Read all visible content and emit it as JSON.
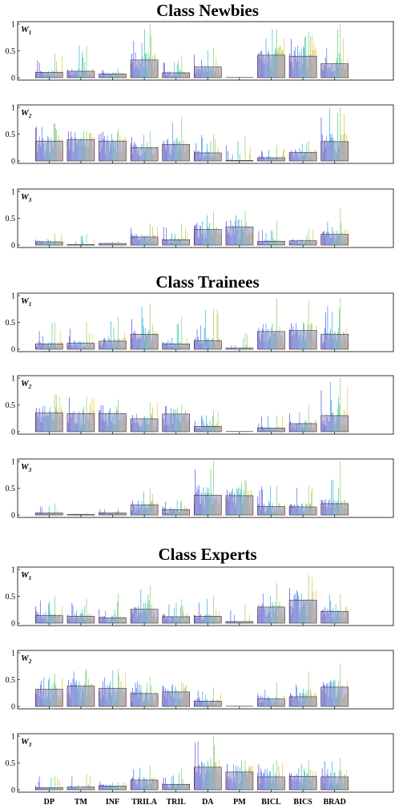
{
  "figure": {
    "groups": [
      "Class Newbies",
      "Class Trainees",
      "Class Experts"
    ],
    "panel_labels": [
      "W1",
      "W2",
      "W3"
    ],
    "categories": [
      "DP",
      "TM",
      "INF",
      "TRILA",
      "TRIL",
      "DA",
      "PM",
      "BICL",
      "BICS",
      "BRAD"
    ]
  },
  "chart_data": [
    {
      "type": "bar",
      "group": "Class Newbies",
      "panel": "W1",
      "ylim": [
        0,
        1
      ],
      "yticks": [
        "0",
        "0.5",
        "1"
      ],
      "categories": [
        "DP",
        "TM",
        "INF",
        "TRILA",
        "TRIL",
        "DA",
        "PM",
        "BICL",
        "BICS",
        "BRAD"
      ],
      "mean": [
        0.1,
        0.12,
        0.07,
        0.33,
        0.09,
        0.2,
        0.0,
        0.42,
        0.4,
        0.26
      ],
      "max": [
        0.45,
        0.6,
        0.17,
        1.0,
        0.42,
        0.55,
        0.0,
        0.9,
        0.85,
        1.0
      ]
    },
    {
      "type": "bar",
      "group": "Class Newbies",
      "panel": "W2",
      "ylim": [
        0,
        1
      ],
      "yticks": [
        "0",
        "0.5",
        "1"
      ],
      "categories": [
        "DP",
        "TM",
        "INF",
        "TRILA",
        "TRIL",
        "DA",
        "PM",
        "BICL",
        "BICS",
        "BRAD"
      ],
      "mean": [
        0.37,
        0.4,
        0.37,
        0.25,
        0.31,
        0.15,
        0.01,
        0.06,
        0.16,
        0.36
      ],
      "max": [
        0.7,
        0.55,
        0.6,
        0.55,
        0.82,
        0.5,
        0.45,
        0.3,
        0.38,
        1.0
      ]
    },
    {
      "type": "bar",
      "group": "Class Newbies",
      "panel": "W3",
      "ylim": [
        0,
        1
      ],
      "yticks": [
        "0",
        "0.5",
        "1"
      ],
      "categories": [
        "DP",
        "TM",
        "INF",
        "TRILA",
        "TRIL",
        "DA",
        "PM",
        "BICL",
        "BICS",
        "BRAD"
      ],
      "mean": [
        0.06,
        0.01,
        0.03,
        0.15,
        0.1,
        0.29,
        0.34,
        0.07,
        0.08,
        0.2
      ],
      "max": [
        0.22,
        0.2,
        0.08,
        0.4,
        0.4,
        0.62,
        0.65,
        0.45,
        0.3,
        0.68
      ]
    },
    {
      "type": "bar",
      "group": "Class Trainees",
      "panel": "W1",
      "ylim": [
        0,
        1
      ],
      "yticks": [
        "0",
        "0.5",
        "1"
      ],
      "categories": [
        "DP",
        "TM",
        "INF",
        "TRILA",
        "TRIL",
        "DA",
        "PM",
        "BICL",
        "BICS",
        "BRAD"
      ],
      "mean": [
        0.1,
        0.11,
        0.15,
        0.28,
        0.1,
        0.16,
        0.02,
        0.33,
        0.35,
        0.28
      ],
      "max": [
        0.5,
        0.5,
        0.6,
        0.85,
        0.6,
        0.75,
        0.3,
        0.95,
        0.9,
        0.95
      ]
    },
    {
      "type": "bar",
      "group": "Class Trainees",
      "panel": "W2",
      "ylim": [
        0,
        1
      ],
      "yticks": [
        "0",
        "0.5",
        "1"
      ],
      "categories": [
        "DP",
        "TM",
        "INF",
        "TRILA",
        "TRIL",
        "DA",
        "PM",
        "BICL",
        "BICS",
        "BRAD"
      ],
      "mean": [
        0.35,
        0.34,
        0.34,
        0.24,
        0.33,
        0.1,
        0.0,
        0.07,
        0.15,
        0.3
      ],
      "max": [
        0.7,
        0.65,
        0.6,
        0.55,
        0.5,
        0.4,
        0.0,
        0.3,
        0.5,
        1.0
      ]
    },
    {
      "type": "bar",
      "group": "Class Trainees",
      "panel": "W3",
      "ylim": [
        0,
        1
      ],
      "yticks": [
        "0",
        "0.5",
        "1"
      ],
      "categories": [
        "DP",
        "TM",
        "INF",
        "TRILA",
        "TRIL",
        "DA",
        "PM",
        "BICL",
        "BICS",
        "BRAD"
      ],
      "mean": [
        0.04,
        0.01,
        0.04,
        0.19,
        0.1,
        0.37,
        0.36,
        0.16,
        0.15,
        0.21
      ],
      "max": [
        0.22,
        0.05,
        0.13,
        0.5,
        0.28,
        1.0,
        0.65,
        0.55,
        0.55,
        1.0
      ]
    },
    {
      "type": "bar",
      "group": "Class Experts",
      "panel": "W1",
      "ylim": [
        0,
        1
      ],
      "yticks": [
        "0",
        "0.5",
        "1"
      ],
      "categories": [
        "DP",
        "TM",
        "INF",
        "TRILA",
        "TRIL",
        "DA",
        "PM",
        "BICL",
        "BICS",
        "BRAD"
      ],
      "mean": [
        0.14,
        0.13,
        0.1,
        0.26,
        0.12,
        0.13,
        0.03,
        0.3,
        0.43,
        0.22
      ],
      "max": [
        0.5,
        0.45,
        0.55,
        0.7,
        0.45,
        0.5,
        0.35,
        0.75,
        0.9,
        0.55
      ]
    },
    {
      "type": "bar",
      "group": "Class Experts",
      "panel": "W2",
      "ylim": [
        0,
        1
      ],
      "yticks": [
        "0",
        "0.5",
        "1"
      ],
      "categories": [
        "DP",
        "TM",
        "INF",
        "TRILA",
        "TRIL",
        "DA",
        "PM",
        "BICL",
        "BICS",
        "BRAD"
      ],
      "mean": [
        0.32,
        0.38,
        0.34,
        0.24,
        0.27,
        0.1,
        0.0,
        0.14,
        0.18,
        0.36
      ],
      "max": [
        0.6,
        0.7,
        0.7,
        0.55,
        0.45,
        0.35,
        0.02,
        0.45,
        0.65,
        0.8
      ]
    },
    {
      "type": "bar",
      "group": "Class Experts",
      "panel": "W3",
      "ylim": [
        0,
        1
      ],
      "yticks": [
        "0",
        "0.5",
        "1"
      ],
      "categories": [
        "DP",
        "TM",
        "INF",
        "TRILA",
        "TRIL",
        "DA",
        "PM",
        "BICL",
        "BICS",
        "BRAD"
      ],
      "mean": [
        0.04,
        0.05,
        0.07,
        0.18,
        0.1,
        0.42,
        0.33,
        0.24,
        0.25,
        0.24
      ],
      "max": [
        0.25,
        0.3,
        0.15,
        0.45,
        0.4,
        1.0,
        0.55,
        0.55,
        0.55,
        0.6
      ]
    }
  ]
}
